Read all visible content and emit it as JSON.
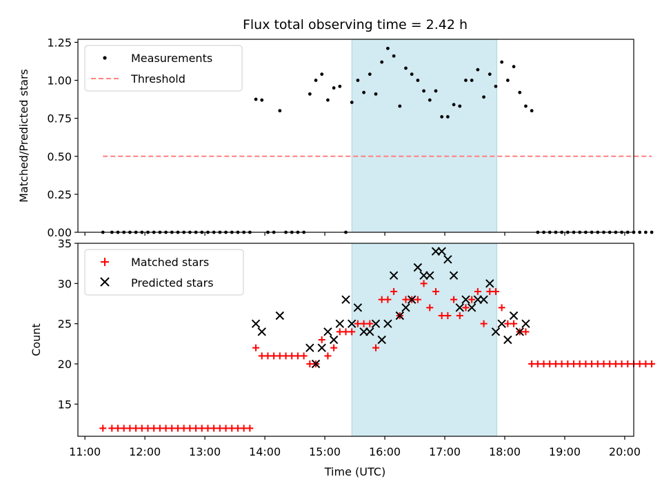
{
  "chart_data": [
    {
      "type": "scatter",
      "title": "Flux total observing time = 2.42 h",
      "xlabel": "",
      "ylabel": "Matched/Predicted stars",
      "ylim": [
        0,
        1.27
      ],
      "yticks": [
        "0.00",
        "0.25",
        "0.50",
        "0.75",
        "1.00",
        "1.25"
      ],
      "ytick_values": [
        0,
        0.25,
        0.5,
        0.75,
        1.0,
        1.25
      ],
      "legend_location": "upper left",
      "legend": [
        "Measurements",
        "Threshold"
      ],
      "shaded_interval": {
        "start": "15:27",
        "end": "17:52",
        "color": "#add8e6"
      },
      "series": [
        {
          "name": "Measurements",
          "marker": "dot",
          "color": "#000000",
          "points": [
            [
              "11:18",
              0
            ],
            [
              "11:27",
              0
            ],
            [
              "11:33",
              0
            ],
            [
              "11:39",
              0
            ],
            [
              "11:45",
              0
            ],
            [
              "11:51",
              0
            ],
            [
              "11:57",
              0
            ],
            [
              "12:03",
              0
            ],
            [
              "12:09",
              0
            ],
            [
              "12:15",
              0
            ],
            [
              "12:21",
              0
            ],
            [
              "12:27",
              0
            ],
            [
              "12:33",
              0
            ],
            [
              "12:39",
              0
            ],
            [
              "12:45",
              0
            ],
            [
              "12:51",
              0
            ],
            [
              "12:57",
              0
            ],
            [
              "13:03",
              0
            ],
            [
              "13:09",
              0
            ],
            [
              "13:15",
              0
            ],
            [
              "13:21",
              0
            ],
            [
              "13:27",
              0
            ],
            [
              "13:33",
              0
            ],
            [
              "13:39",
              0
            ],
            [
              "13:45",
              0
            ],
            [
              "13:51",
              0.875
            ],
            [
              "13:57",
              0.87
            ],
            [
              "14:03",
              0
            ],
            [
              "14:09",
              0
            ],
            [
              "14:15",
              0.8
            ],
            [
              "14:21",
              0
            ],
            [
              "14:27",
              0
            ],
            [
              "14:33",
              0
            ],
            [
              "14:39",
              0
            ],
            [
              "14:45",
              0.91
            ],
            [
              "14:51",
              1.0
            ],
            [
              "14:57",
              1.04
            ],
            [
              "15:03",
              0.87
            ],
            [
              "15:09",
              0.95
            ],
            [
              "15:15",
              0.96
            ],
            [
              "15:21",
              0
            ],
            [
              "15:27",
              0.855
            ],
            [
              "15:33",
              1.0
            ],
            [
              "15:39",
              0.92
            ],
            [
              "15:45",
              1.04
            ],
            [
              "15:51",
              0.91
            ],
            [
              "15:57",
              1.12
            ],
            [
              "16:03",
              1.21
            ],
            [
              "16:09",
              1.16
            ],
            [
              "16:15",
              0.83
            ],
            [
              "16:21",
              1.08
            ],
            [
              "16:27",
              1.04
            ],
            [
              "16:33",
              1.0
            ],
            [
              "16:39",
              0.93
            ],
            [
              "16:45",
              0.87
            ],
            [
              "16:51",
              0.93
            ],
            [
              "16:57",
              0.76
            ],
            [
              "17:03",
              0.76
            ],
            [
              "17:09",
              0.84
            ],
            [
              "17:15",
              0.83
            ],
            [
              "17:21",
              1.0
            ],
            [
              "17:27",
              1.0
            ],
            [
              "17:33",
              1.07
            ],
            [
              "17:39",
              0.89
            ],
            [
              "17:45",
              1.04
            ],
            [
              "17:51",
              0.96
            ],
            [
              "17:57",
              1.12
            ],
            [
              "18:03",
              1.0
            ],
            [
              "18:09",
              1.09
            ],
            [
              "18:15",
              0.92
            ],
            [
              "18:21",
              0.83
            ],
            [
              "18:27",
              0.8
            ],
            [
              "18:33",
              0
            ],
            [
              "18:39",
              0
            ],
            [
              "18:45",
              0
            ],
            [
              "18:51",
              0
            ],
            [
              "18:57",
              0
            ],
            [
              "19:03",
              0
            ],
            [
              "19:09",
              0
            ],
            [
              "19:15",
              0
            ],
            [
              "19:21",
              0
            ],
            [
              "19:27",
              0
            ],
            [
              "19:33",
              0
            ],
            [
              "19:39",
              0
            ],
            [
              "19:45",
              0
            ],
            [
              "19:51",
              0
            ],
            [
              "19:57",
              0
            ],
            [
              "20:03",
              0
            ],
            [
              "20:09",
              0
            ],
            [
              "20:15",
              0
            ],
            [
              "20:21",
              0
            ],
            [
              "20:27",
              0
            ]
          ]
        },
        {
          "name": "Threshold",
          "marker": "dashed-line",
          "color": "#ff7f7f",
          "x": [
            "11:18",
            "20:27"
          ],
          "y": [
            0.5,
            0.5
          ]
        }
      ]
    },
    {
      "type": "scatter",
      "title": "",
      "xlabel": "Time (UTC)",
      "ylabel": "Count",
      "ylim": [
        11,
        35
      ],
      "yticks": [
        "15",
        "20",
        "25",
        "30",
        "35"
      ],
      "ytick_values": [
        15,
        20,
        25,
        30,
        35
      ],
      "xticks": [
        "11:00",
        "12:00",
        "13:00",
        "14:00",
        "15:00",
        "16:00",
        "17:00",
        "18:00",
        "19:00",
        "20:00"
      ],
      "xlim": [
        "10:53",
        "20:09"
      ],
      "legend_location": "upper left",
      "legend": [
        "Matched stars",
        "Predicted stars"
      ],
      "shaded_interval": {
        "start": "15:27",
        "end": "17:52",
        "color": "#add8e6"
      },
      "series": [
        {
          "name": "Matched stars",
          "marker": "plus",
          "color": "#ff0000",
          "points": [
            [
              "11:18",
              12
            ],
            [
              "11:27",
              12
            ],
            [
              "11:33",
              12
            ],
            [
              "11:39",
              12
            ],
            [
              "11:45",
              12
            ],
            [
              "11:51",
              12
            ],
            [
              "11:57",
              12
            ],
            [
              "12:03",
              12
            ],
            [
              "12:09",
              12
            ],
            [
              "12:15",
              12
            ],
            [
              "12:21",
              12
            ],
            [
              "12:27",
              12
            ],
            [
              "12:33",
              12
            ],
            [
              "12:39",
              12
            ],
            [
              "12:45",
              12
            ],
            [
              "12:51",
              12
            ],
            [
              "12:57",
              12
            ],
            [
              "13:03",
              12
            ],
            [
              "13:09",
              12
            ],
            [
              "13:15",
              12
            ],
            [
              "13:21",
              12
            ],
            [
              "13:27",
              12
            ],
            [
              "13:33",
              12
            ],
            [
              "13:39",
              12
            ],
            [
              "13:45",
              12
            ],
            [
              "13:51",
              22
            ],
            [
              "13:57",
              21
            ],
            [
              "14:03",
              21
            ],
            [
              "14:09",
              21
            ],
            [
              "14:15",
              21
            ],
            [
              "14:21",
              21
            ],
            [
              "14:27",
              21
            ],
            [
              "14:33",
              21
            ],
            [
              "14:39",
              21
            ],
            [
              "14:45",
              20
            ],
            [
              "14:51",
              20
            ],
            [
              "14:57",
              23
            ],
            [
              "15:03",
              21
            ],
            [
              "15:09",
              22
            ],
            [
              "15:15",
              24
            ],
            [
              "15:21",
              24
            ],
            [
              "15:27",
              24
            ],
            [
              "15:33",
              25
            ],
            [
              "15:39",
              25
            ],
            [
              "15:45",
              25
            ],
            [
              "15:51",
              22
            ],
            [
              "15:57",
              28
            ],
            [
              "16:03",
              28
            ],
            [
              "16:09",
              29
            ],
            [
              "16:15",
              26
            ],
            [
              "16:21",
              28
            ],
            [
              "16:27",
              28
            ],
            [
              "16:33",
              28
            ],
            [
              "16:39",
              30
            ],
            [
              "16:45",
              27
            ],
            [
              "16:51",
              29
            ],
            [
              "16:57",
              26
            ],
            [
              "17:03",
              26
            ],
            [
              "17:09",
              28
            ],
            [
              "17:15",
              26
            ],
            [
              "17:21",
              27
            ],
            [
              "17:27",
              28
            ],
            [
              "17:33",
              29
            ],
            [
              "17:39",
              25
            ],
            [
              "17:45",
              29
            ],
            [
              "17:51",
              29
            ],
            [
              "17:57",
              27
            ],
            [
              "18:03",
              25
            ],
            [
              "18:09",
              25
            ],
            [
              "18:15",
              24
            ],
            [
              "18:21",
              24
            ],
            [
              "18:27",
              20
            ],
            [
              "18:33",
              20
            ],
            [
              "18:39",
              20
            ],
            [
              "18:45",
              20
            ],
            [
              "18:51",
              20
            ],
            [
              "18:57",
              20
            ],
            [
              "19:03",
              20
            ],
            [
              "19:09",
              20
            ],
            [
              "19:15",
              20
            ],
            [
              "19:21",
              20
            ],
            [
              "19:27",
              20
            ],
            [
              "19:33",
              20
            ],
            [
              "19:39",
              20
            ],
            [
              "19:45",
              20
            ],
            [
              "19:51",
              20
            ],
            [
              "19:57",
              20
            ],
            [
              "20:03",
              20
            ],
            [
              "20:09",
              20
            ],
            [
              "20:15",
              20
            ],
            [
              "20:21",
              20
            ],
            [
              "20:27",
              20
            ]
          ]
        },
        {
          "name": "Predicted stars",
          "marker": "x",
          "color": "#000000",
          "points": [
            [
              "13:51",
              25
            ],
            [
              "13:57",
              24
            ],
            [
              "14:15",
              26
            ],
            [
              "14:45",
              22
            ],
            [
              "14:51",
              20
            ],
            [
              "14:57",
              22
            ],
            [
              "15:03",
              24
            ],
            [
              "15:09",
              23
            ],
            [
              "15:15",
              25
            ],
            [
              "15:21",
              28
            ],
            [
              "15:27",
              25
            ],
            [
              "15:33",
              27
            ],
            [
              "15:39",
              24
            ],
            [
              "15:45",
              24
            ],
            [
              "15:51",
              25
            ],
            [
              "15:57",
              23
            ],
            [
              "16:03",
              25
            ],
            [
              "16:09",
              31
            ],
            [
              "16:15",
              26
            ],
            [
              "16:21",
              27
            ],
            [
              "16:27",
              28
            ],
            [
              "16:33",
              32
            ],
            [
              "16:39",
              31
            ],
            [
              "16:45",
              31
            ],
            [
              "16:51",
              34
            ],
            [
              "16:57",
              34
            ],
            [
              "17:03",
              33
            ],
            [
              "17:09",
              31
            ],
            [
              "17:15",
              27
            ],
            [
              "17:21",
              28
            ],
            [
              "17:27",
              27
            ],
            [
              "17:33",
              28
            ],
            [
              "17:39",
              28
            ],
            [
              "17:45",
              30
            ],
            [
              "17:51",
              24
            ],
            [
              "17:57",
              25
            ],
            [
              "18:03",
              23
            ],
            [
              "18:09",
              26
            ],
            [
              "18:15",
              24
            ],
            [
              "18:21",
              25
            ]
          ]
        }
      ]
    }
  ]
}
